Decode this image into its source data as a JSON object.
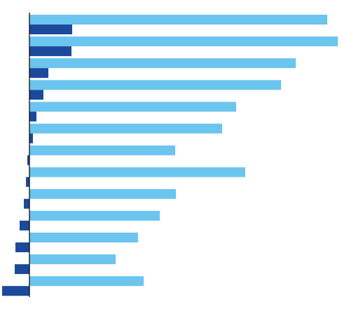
{
  "chart_data": {
    "type": "bar",
    "orientation": "horizontal",
    "title": "",
    "xlabel": "",
    "ylabel": "",
    "grid": false,
    "legend": "none",
    "categories": [
      "",
      "",
      "",
      "",
      "",
      "",
      "",
      "",
      "",
      "",
      "",
      "",
      ""
    ],
    "xlim": [
      -39,
      441
    ],
    "series": [
      {
        "color": "#6BC5EE",
        "values": [
          425,
          440,
          380,
          359,
          295,
          275,
          208,
          308,
          209,
          186,
          155,
          123,
          163
        ]
      },
      {
        "color": "#1B4A9C",
        "values": [
          61,
          60,
          27,
          20,
          10,
          5,
          -3,
          -5,
          -8,
          -14,
          -20,
          -21,
          -39
        ]
      }
    ]
  },
  "colors": {
    "axis": "#000000",
    "background": "#FFFFFF"
  }
}
